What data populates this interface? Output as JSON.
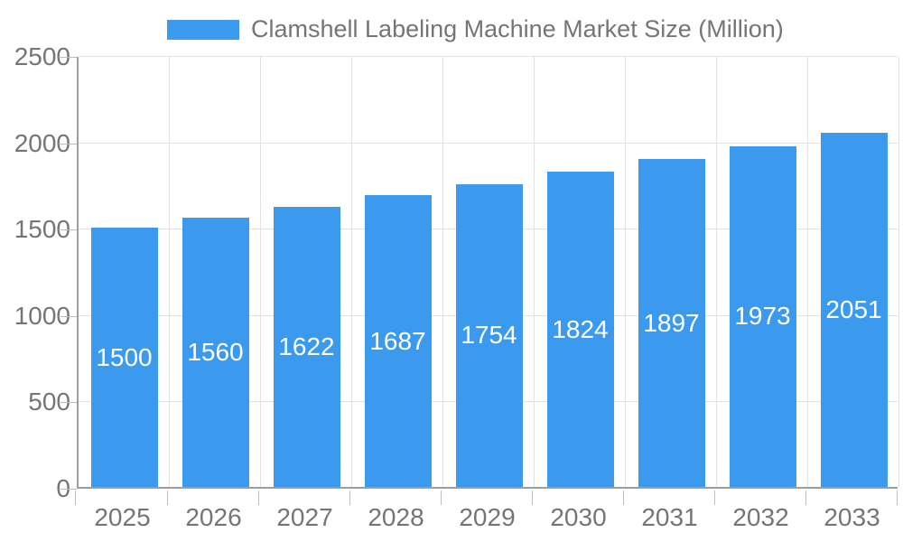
{
  "chart_data": {
    "type": "bar",
    "title": "Clamshell Labeling Machine Market Size (Million)",
    "categories": [
      "2025",
      "2026",
      "2027",
      "2028",
      "2029",
      "2030",
      "2031",
      "2032",
      "2033"
    ],
    "values": [
      1500,
      1560,
      1622,
      1687,
      1754,
      1824,
      1897,
      1973,
      2051
    ],
    "xlabel": "",
    "ylabel": "",
    "ylim": [
      0,
      2500
    ],
    "yticks": [
      0,
      500,
      1000,
      1500,
      2000,
      2500
    ],
    "grid": "on",
    "legend_position": "top",
    "bar_labels_visible": true,
    "colors": {
      "bar": "#3b99ee",
      "axis_text": "#757575",
      "bar_label_text": "#ffffff",
      "gridline": "#e2e2e2",
      "axis_line": "#9e9e9e",
      "tick": "#bdbdbd",
      "background": "#ffffff"
    }
  }
}
